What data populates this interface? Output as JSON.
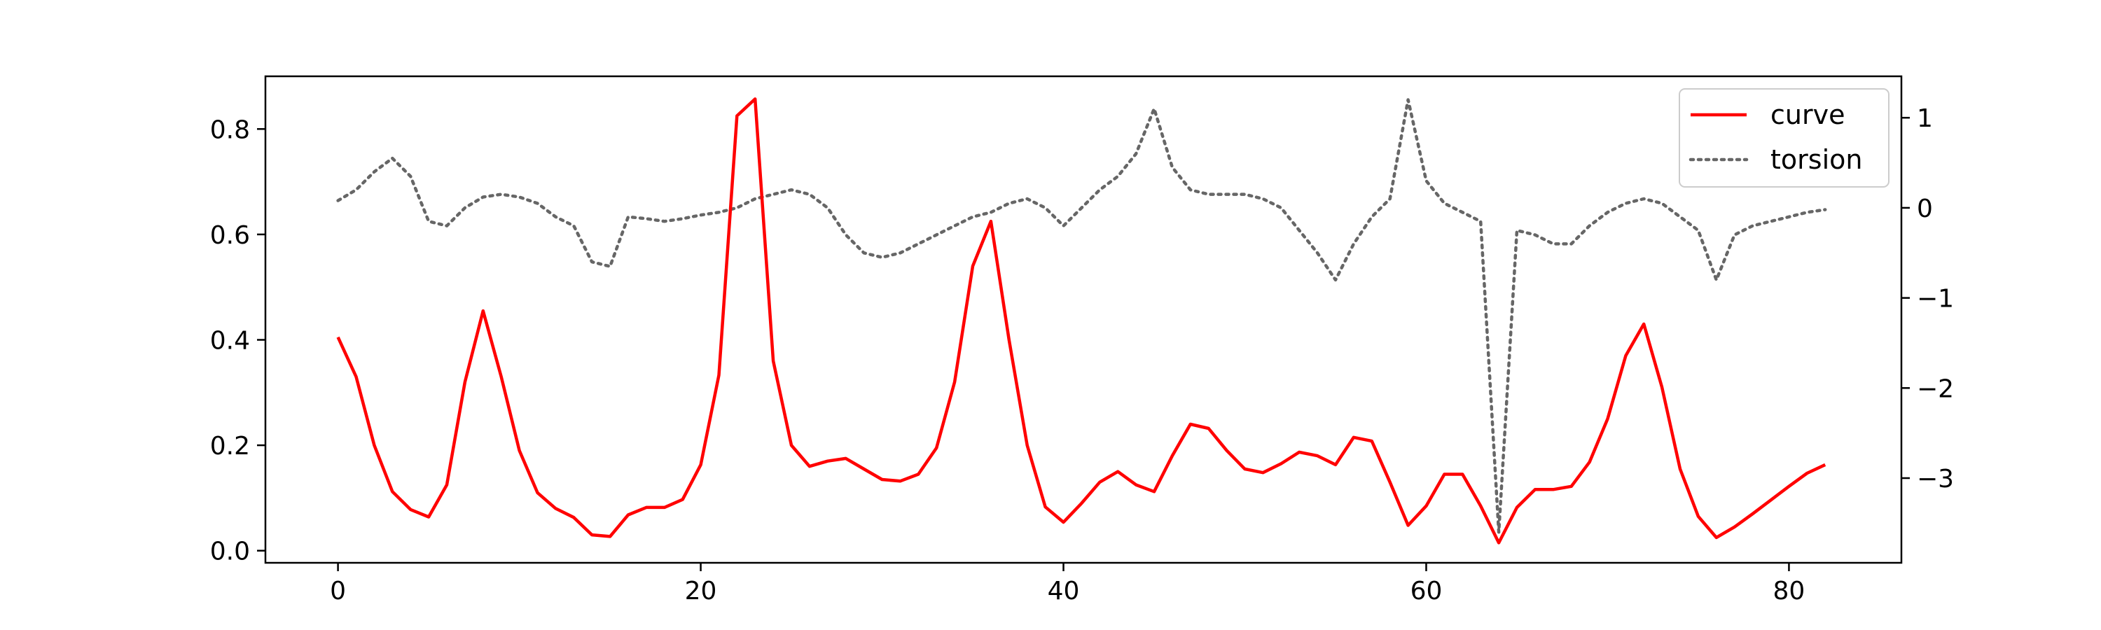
{
  "chart_data": {
    "type": "line",
    "x": [
      0,
      1,
      2,
      3,
      4,
      5,
      6,
      7,
      8,
      9,
      10,
      11,
      12,
      13,
      14,
      15,
      16,
      17,
      18,
      19,
      20,
      21,
      22,
      23,
      24,
      25,
      26,
      27,
      28,
      29,
      30,
      31,
      32,
      33,
      34,
      35,
      36,
      37,
      38,
      39,
      40,
      41,
      42,
      43,
      44,
      45,
      46,
      47,
      48,
      49,
      50,
      51,
      52,
      53,
      54,
      55,
      56,
      57,
      58,
      59,
      60,
      61,
      62,
      63,
      64,
      65,
      66,
      67,
      68,
      69,
      70,
      71,
      72,
      73,
      74,
      75,
      76,
      77,
      78,
      79,
      80,
      81,
      82
    ],
    "series": [
      {
        "name": "curve",
        "axis": "left",
        "color": "#ff0000",
        "style": "solid",
        "values": [
          0.405,
          0.33,
          0.2,
          0.112,
          0.078,
          0.064,
          0.125,
          0.32,
          0.455,
          0.33,
          0.19,
          0.11,
          0.08,
          0.063,
          0.03,
          0.027,
          0.068,
          0.082,
          0.082,
          0.097,
          0.163,
          0.333,
          0.825,
          0.857,
          0.36,
          0.2,
          0.16,
          0.17,
          0.175,
          0.155,
          0.135,
          0.132,
          0.145,
          0.195,
          0.32,
          0.54,
          0.625,
          0.4,
          0.2,
          0.083,
          0.054,
          0.09,
          0.13,
          0.15,
          0.125,
          0.112,
          0.18,
          0.24,
          0.232,
          0.19,
          0.155,
          0.148,
          0.165,
          0.187,
          0.18,
          0.163,
          0.215,
          0.208,
          0.13,
          0.048,
          0.085,
          0.145,
          0.145,
          0.085,
          0.015,
          0.082,
          0.116,
          0.116,
          0.122,
          0.168,
          0.25,
          0.37,
          0.43,
          0.31,
          0.155,
          0.065,
          0.025,
          0.045,
          0.07,
          0.096,
          0.122,
          0.147,
          0.163
        ]
      },
      {
        "name": "torsion",
        "axis": "right",
        "color": "#666666",
        "style": "dotted",
        "values": [
          0.08,
          0.2,
          0.4,
          0.55,
          0.35,
          -0.15,
          -0.2,
          0.0,
          0.12,
          0.15,
          0.12,
          0.05,
          -0.1,
          -0.2,
          -0.6,
          -0.65,
          -0.1,
          -0.12,
          -0.15,
          -0.12,
          -0.08,
          -0.05,
          0.0,
          0.1,
          0.15,
          0.2,
          0.15,
          0.0,
          -0.3,
          -0.5,
          -0.55,
          -0.5,
          -0.4,
          -0.3,
          -0.2,
          -0.1,
          -0.05,
          0.05,
          0.1,
          0.0,
          -0.2,
          0.0,
          0.2,
          0.35,
          0.6,
          1.1,
          0.45,
          0.2,
          0.15,
          0.15,
          0.15,
          0.1,
          0.0,
          -0.25,
          -0.5,
          -0.8,
          -0.4,
          -0.1,
          0.1,
          1.2,
          0.3,
          0.05,
          -0.05,
          -0.15,
          -3.6,
          -0.25,
          -0.3,
          -0.4,
          -0.4,
          -0.2,
          -0.05,
          0.05,
          0.1,
          0.05,
          -0.1,
          -0.25,
          -0.8,
          -0.3,
          -0.2,
          -0.15,
          -0.1,
          -0.05,
          -0.02
        ]
      }
    ],
    "xlim": [
      -4,
      86.2
    ],
    "ylim": [
      -0.023,
      0.9
    ],
    "ylim_right": [
      -3.94,
      1.46
    ],
    "xticks": [
      0,
      20,
      40,
      60,
      80
    ],
    "xtick_labels": [
      "0",
      "20",
      "40",
      "60",
      "80"
    ],
    "yticks": [
      0.0,
      0.2,
      0.4,
      0.6,
      0.8
    ],
    "ytick_labels": [
      "0.0",
      "0.2",
      "0.4",
      "0.6",
      "0.8"
    ],
    "yticks_right": [
      -3,
      -2,
      -1,
      0,
      1
    ],
    "ytick_labels_right": [
      "−3",
      "−2",
      "−1",
      "0",
      "1"
    ],
    "grid": false,
    "legend_position": "top-right",
    "legend": [
      "curve",
      "torsion"
    ]
  }
}
